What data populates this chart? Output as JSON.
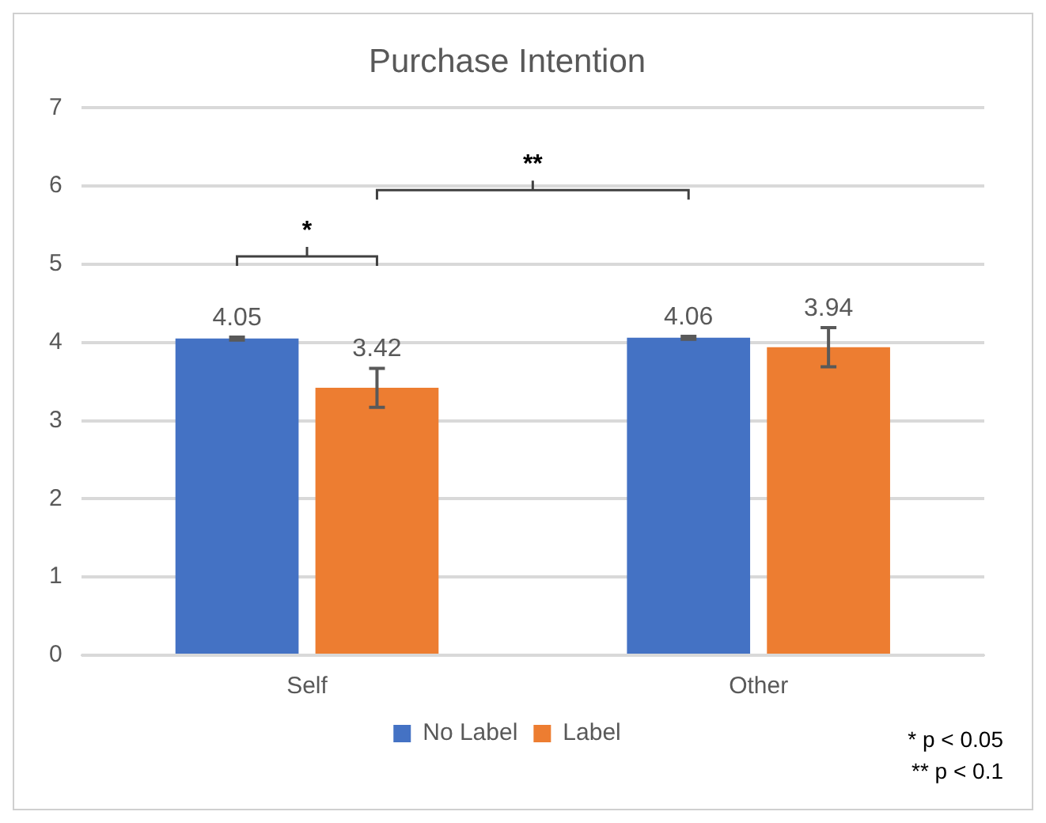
{
  "chart_data": {
    "type": "bar",
    "title": "Purchase Intention",
    "categories": [
      "Self",
      "Other"
    ],
    "series": [
      {
        "name": "No Label",
        "color": "#4472c4",
        "values": [
          4.05,
          4.06
        ],
        "errors": [
          0.02,
          0.02
        ]
      },
      {
        "name": "Label",
        "color": "#ed7d31",
        "values": [
          3.42,
          3.94
        ],
        "errors": [
          0.25,
          0.25
        ]
      }
    ],
    "ylim": [
      0,
      7
    ],
    "yticks": [
      0,
      1,
      2,
      3,
      4,
      5,
      6,
      7
    ],
    "grid": "y",
    "legend": "bottom",
    "data_labels": true,
    "annotations": [
      "*",
      "**",
      "* p < 0.05",
      "** p < 0.1"
    ]
  }
}
